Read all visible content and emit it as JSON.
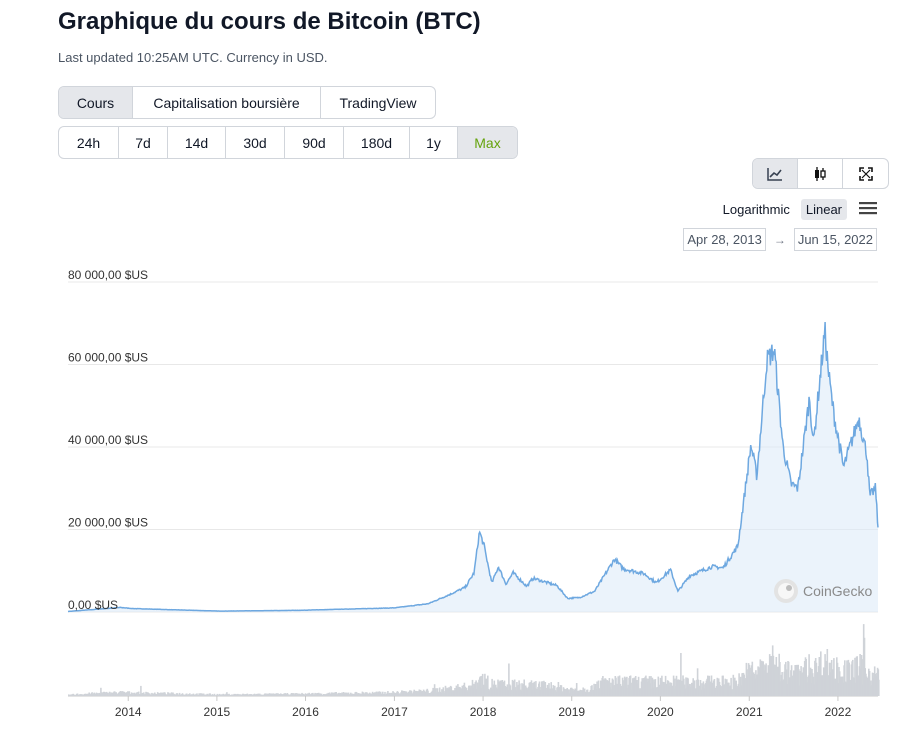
{
  "header": {
    "title": "Graphique du cours de Bitcoin (BTC)",
    "subtitle": "Last updated 10:25AM UTC. Currency in USD."
  },
  "chart_tabs": [
    {
      "label": "Cours",
      "active": true
    },
    {
      "label": "Capitalisation boursière",
      "active": false
    },
    {
      "label": "TradingView",
      "active": false
    }
  ],
  "range_tabs": [
    {
      "label": "24h",
      "active": false
    },
    {
      "label": "7d",
      "active": false
    },
    {
      "label": "14d",
      "active": false
    },
    {
      "label": "30d",
      "active": false
    },
    {
      "label": "90d",
      "active": false
    },
    {
      "label": "180d",
      "active": false
    },
    {
      "label": "1y",
      "active": false
    },
    {
      "label": "Max",
      "active": true
    }
  ],
  "view_toggle": [
    {
      "icon": "line-chart-icon",
      "active": true
    },
    {
      "icon": "candlestick-icon",
      "active": false
    },
    {
      "icon": "fullscreen-icon",
      "active": false
    }
  ],
  "scale": {
    "log_label": "Logarithmic",
    "linear_label": "Linear",
    "active": "linear"
  },
  "date_range": {
    "from": "Apr 28, 2013",
    "to": "Jun 15, 2022",
    "arrow": "→"
  },
  "watermark": "CoinGecko",
  "colors": {
    "line": "#6ea8e0",
    "area": "#dbe9f8",
    "volume": "#cfd3d8",
    "active_range": "#65a30d",
    "grid": "#e8e8e8"
  },
  "chart_data": {
    "type": "area",
    "title": "",
    "xlabel": "",
    "ylabel": "",
    "ylim": [
      0,
      80000
    ],
    "x_range": [
      "2013-04-28",
      "2022-06-15"
    ],
    "y_ticks": [
      80000,
      60000,
      40000,
      20000,
      0
    ],
    "y_tick_labels": [
      "80 000,00 $US",
      "60 000,00 $US",
      "40 000,00 $US",
      "20 000,00 $US",
      "0,00 $US"
    ],
    "x_ticks": [
      "2014",
      "2015",
      "2016",
      "2017",
      "2018",
      "2019",
      "2020",
      "2021",
      "2022"
    ],
    "grid": true,
    "series": [
      {
        "values": [
          [
            "2013-04-28",
            135
          ],
          [
            "2013-11-30",
            1100
          ],
          [
            "2014-01-15",
            850
          ],
          [
            "2014-06-01",
            600
          ],
          [
            "2015-01-15",
            220
          ],
          [
            "2015-12-01",
            400
          ],
          [
            "2016-06-15",
            700
          ],
          [
            "2017-01-01",
            1000
          ],
          [
            "2017-05-20",
            2000
          ],
          [
            "2017-08-15",
            4200
          ],
          [
            "2017-10-20",
            6000
          ],
          [
            "2017-11-25",
            9500
          ],
          [
            "2017-12-17",
            19500
          ],
          [
            "2018-01-05",
            16000
          ],
          [
            "2018-02-06",
            7000
          ],
          [
            "2018-03-05",
            11000
          ],
          [
            "2018-04-05",
            6800
          ],
          [
            "2018-05-05",
            9500
          ],
          [
            "2018-06-30",
            6200
          ],
          [
            "2018-07-25",
            8200
          ],
          [
            "2018-11-01",
            6400
          ],
          [
            "2018-12-15",
            3300
          ],
          [
            "2019-02-01",
            3500
          ],
          [
            "2019-04-05",
            5000
          ],
          [
            "2019-06-26",
            12800
          ],
          [
            "2019-08-01",
            10500
          ],
          [
            "2019-10-26",
            9300
          ],
          [
            "2019-12-15",
            7100
          ],
          [
            "2020-02-12",
            10200
          ],
          [
            "2020-03-13",
            5000
          ],
          [
            "2020-05-01",
            8800
          ],
          [
            "2020-07-31",
            11000
          ],
          [
            "2020-09-15",
            10700
          ],
          [
            "2020-11-15",
            16000
          ],
          [
            "2021-01-08",
            40500
          ],
          [
            "2021-02-01",
            33000
          ],
          [
            "2021-03-14",
            61000
          ],
          [
            "2021-04-14",
            63500
          ],
          [
            "2021-05-20",
            40000
          ],
          [
            "2021-06-22",
            31000
          ],
          [
            "2021-07-20",
            30000
          ],
          [
            "2021-09-06",
            52000
          ],
          [
            "2021-09-22",
            41000
          ],
          [
            "2021-11-08",
            68000
          ],
          [
            "2021-11-25",
            57000
          ],
          [
            "2021-12-15",
            48000
          ],
          [
            "2022-01-24",
            35000
          ],
          [
            "2022-03-28",
            47000
          ],
          [
            "2022-05-01",
            38000
          ],
          [
            "2022-05-12",
            28000
          ],
          [
            "2022-06-05",
            30000
          ],
          [
            "2022-06-15",
            20500
          ]
        ]
      }
    ]
  }
}
